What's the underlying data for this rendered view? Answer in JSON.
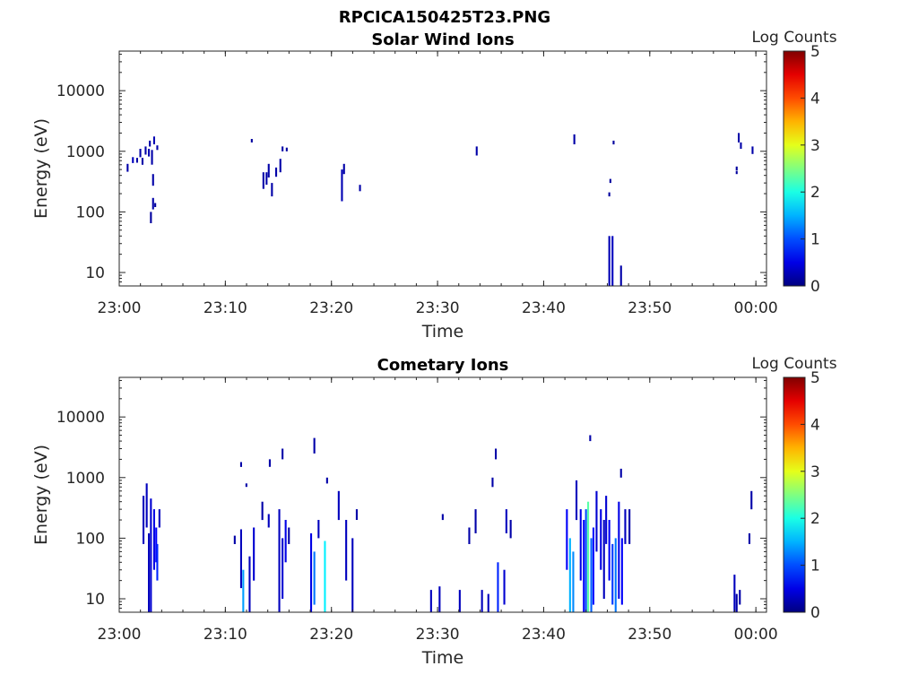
{
  "figure": {
    "title": "RPCICA150425T23.PNG"
  },
  "chart_data": [
    {
      "type": "heatmap",
      "title": "Solar Wind Ions",
      "xlabel": "Time",
      "ylabel": "Energy (eV)",
      "x_ticks": [
        "23:00",
        "23:10",
        "23:20",
        "23:30",
        "23:40",
        "23:50",
        "00:00"
      ],
      "xlim_minutes": [
        0,
        61
      ],
      "yscale": "log",
      "ylim": [
        6,
        45000
      ],
      "y_ticks": [
        10,
        100,
        1000,
        10000
      ],
      "y_tick_labels": [
        "10",
        "100",
        "1000",
        "10000"
      ],
      "colorbar": {
        "label": "Log Counts",
        "range": [
          0,
          5
        ],
        "ticks": [
          "0",
          "1",
          "2",
          "3",
          "4",
          "5"
        ],
        "colormap": "jet"
      },
      "cells": [
        [
          0.7,
          460,
          620,
          0.2
        ],
        [
          1.2,
          640,
          800,
          0.3
        ],
        [
          1.6,
          650,
          780,
          0.2
        ],
        [
          1.9,
          800,
          1100,
          0.2
        ],
        [
          2.1,
          600,
          780,
          0.2
        ],
        [
          2.4,
          880,
          1200,
          0.2
        ],
        [
          2.7,
          820,
          1100,
          0.25
        ],
        [
          2.8,
          1200,
          1500,
          0.2
        ],
        [
          3.0,
          600,
          1050,
          0.2
        ],
        [
          3.1,
          270,
          420,
          0.2
        ],
        [
          3.1,
          110,
          170,
          0.2
        ],
        [
          2.9,
          65,
          100,
          0.15
        ],
        [
          3.2,
          1300,
          1750,
          0.25
        ],
        [
          3.5,
          1050,
          1250,
          0.2
        ],
        [
          3.3,
          120,
          140,
          0.15
        ],
        [
          12.4,
          1400,
          1600,
          0.15
        ],
        [
          13.5,
          240,
          450,
          0.2
        ],
        [
          13.8,
          280,
          450,
          0.2
        ],
        [
          14.0,
          370,
          620,
          0.2
        ],
        [
          14.3,
          180,
          300,
          0.2
        ],
        [
          14.7,
          380,
          540,
          0.2
        ],
        [
          15.1,
          450,
          750,
          0.2
        ],
        [
          15.3,
          1000,
          1200,
          0.2
        ],
        [
          15.7,
          1000,
          1150,
          0.15
        ],
        [
          20.9,
          150,
          500,
          0.25
        ],
        [
          21.1,
          420,
          620,
          0.2
        ],
        [
          22.6,
          220,
          280,
          0.2
        ],
        [
          33.6,
          850,
          1200,
          0.2
        ],
        [
          42.8,
          1300,
          1900,
          0.2
        ],
        [
          46.1,
          6,
          40,
          0.25
        ],
        [
          46.4,
          6,
          40,
          0.3
        ],
        [
          46.2,
          300,
          350,
          0.15
        ],
        [
          46.1,
          180,
          210,
          0.15
        ],
        [
          46.5,
          1300,
          1500,
          0.15
        ],
        [
          47.2,
          6,
          13,
          0.2
        ],
        [
          58.1,
          480,
          560,
          0.15
        ],
        [
          58.1,
          420,
          470,
          0.15
        ],
        [
          58.3,
          1400,
          2000,
          0.2
        ],
        [
          58.5,
          1100,
          1400,
          0.2
        ],
        [
          59.6,
          900,
          1200,
          0.2
        ]
      ]
    },
    {
      "type": "heatmap",
      "title": "Cometary Ions",
      "xlabel": "Time",
      "ylabel": "Energy (eV)",
      "x_ticks": [
        "23:00",
        "23:10",
        "23:20",
        "23:30",
        "23:40",
        "23:50",
        "00:00"
      ],
      "xlim_minutes": [
        0,
        61
      ],
      "yscale": "log",
      "ylim": [
        6,
        45000
      ],
      "y_ticks": [
        10,
        100,
        1000,
        10000
      ],
      "y_tick_labels": [
        "10",
        "100",
        "1000",
        "10000"
      ],
      "colorbar": {
        "label": "Log Counts",
        "range": [
          0,
          5
        ],
        "ticks": [
          "0",
          "1",
          "2",
          "3",
          "4",
          "5"
        ],
        "colormap": "jet"
      },
      "cells": [
        [
          2.2,
          80,
          500,
          0.3
        ],
        [
          2.5,
          150,
          800,
          0.3
        ],
        [
          2.7,
          6,
          120,
          0.3
        ],
        [
          2.9,
          6,
          450,
          0.4
        ],
        [
          3.2,
          30,
          300,
          0.5
        ],
        [
          3.4,
          40,
          150,
          0.6
        ],
        [
          3.5,
          20,
          80,
          0.8
        ],
        [
          3.7,
          150,
          300,
          0.3
        ],
        [
          10.8,
          80,
          110,
          0.2
        ],
        [
          11.4,
          15,
          140,
          0.3
        ],
        [
          11.6,
          6,
          30,
          1.4
        ],
        [
          12.2,
          6,
          50,
          0.3
        ],
        [
          12.6,
          20,
          150,
          0.4
        ],
        [
          11.4,
          1500,
          1800,
          0.2
        ],
        [
          11.9,
          700,
          800,
          0.2
        ],
        [
          13.4,
          200,
          400,
          0.2
        ],
        [
          14.0,
          150,
          250,
          0.3
        ],
        [
          15.0,
          6,
          300,
          0.3
        ],
        [
          15.3,
          10,
          100,
          0.4
        ],
        [
          15.6,
          40,
          200,
          0.5
        ],
        [
          15.9,
          80,
          150,
          0.2
        ],
        [
          14.1,
          1500,
          2000,
          0.2
        ],
        [
          15.3,
          2000,
          3000,
          0.2
        ],
        [
          18.0,
          6,
          120,
          0.5
        ],
        [
          18.3,
          8,
          60,
          1.2
        ],
        [
          18.7,
          100,
          200,
          0.3
        ],
        [
          18.3,
          2500,
          4500,
          0.2
        ],
        [
          19.3,
          6,
          90,
          1.8
        ],
        [
          19.5,
          800,
          1000,
          0.2
        ],
        [
          20.6,
          200,
          600,
          0.3
        ],
        [
          21.3,
          20,
          200,
          0.3
        ],
        [
          21.9,
          6,
          100,
          0.3
        ],
        [
          22.3,
          200,
          300,
          0.2
        ],
        [
          29.3,
          6,
          14,
          0.3
        ],
        [
          30.1,
          6,
          16,
          0.3
        ],
        [
          30.4,
          200,
          250,
          0.2
        ],
        [
          32.0,
          6,
          14,
          0.3
        ],
        [
          32.9,
          80,
          150,
          0.2
        ],
        [
          33.5,
          120,
          300,
          0.2
        ],
        [
          34.1,
          6,
          14,
          0.3
        ],
        [
          34.7,
          6,
          12,
          0.3
        ],
        [
          35.1,
          700,
          1000,
          0.2
        ],
        [
          35.4,
          2000,
          3000,
          0.2
        ],
        [
          35.6,
          6,
          40,
          0.8
        ],
        [
          36.2,
          8,
          30,
          0.4
        ],
        [
          36.4,
          120,
          300,
          0.3
        ],
        [
          36.8,
          100,
          200,
          0.2
        ],
        [
          42.1,
          30,
          300,
          0.6
        ],
        [
          42.4,
          6,
          100,
          1.5
        ],
        [
          42.7,
          6,
          60,
          1.3
        ],
        [
          43.0,
          200,
          900,
          0.3
        ],
        [
          43.4,
          20,
          300,
          0.5
        ],
        [
          43.7,
          6,
          200,
          0.6
        ],
        [
          43.9,
          6,
          300,
          1.0
        ],
        [
          44.1,
          6,
          400,
          2.3
        ],
        [
          44.4,
          6,
          100,
          1.1
        ],
        [
          44.6,
          8,
          150,
          0.7
        ],
        [
          44.3,
          4000,
          5000,
          0.2
        ],
        [
          44.9,
          60,
          600,
          0.4
        ],
        [
          45.3,
          30,
          300,
          0.5
        ],
        [
          45.6,
          10,
          200,
          0.3
        ],
        [
          45.8,
          80,
          500,
          0.4
        ],
        [
          46.1,
          20,
          200,
          0.6
        ],
        [
          46.4,
          8,
          80,
          0.9
        ],
        [
          46.7,
          6,
          100,
          1.2
        ],
        [
          47.0,
          10,
          400,
          0.5
        ],
        [
          47.3,
          8,
          100,
          0.6
        ],
        [
          47.6,
          80,
          300,
          0.3
        ],
        [
          48.0,
          80,
          300,
          0.2
        ],
        [
          47.2,
          1000,
          1400,
          0.2
        ],
        [
          57.9,
          6,
          25,
          0.3
        ],
        [
          58.1,
          6,
          12,
          0.2
        ],
        [
          58.4,
          8,
          14,
          0.2
        ],
        [
          59.3,
          80,
          120,
          0.2
        ],
        [
          59.5,
          300,
          600,
          0.2
        ]
      ]
    }
  ]
}
